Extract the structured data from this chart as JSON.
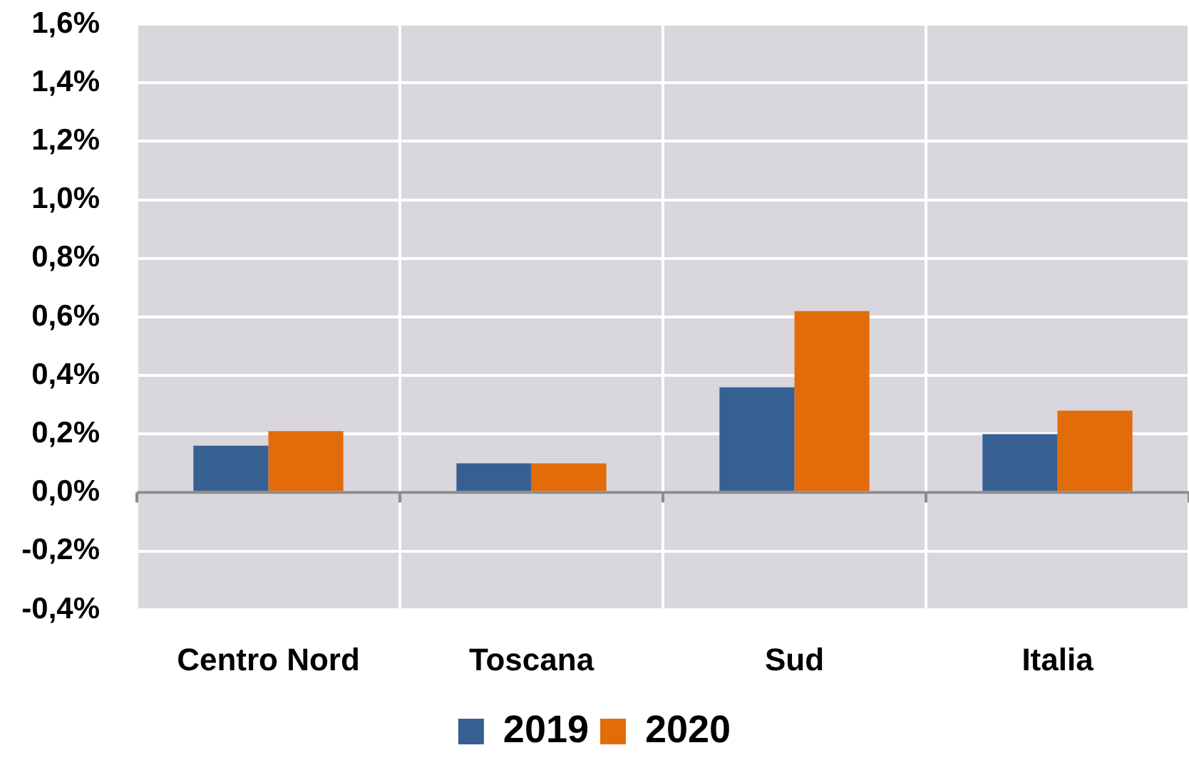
{
  "chart_data": {
    "type": "bar",
    "categories": [
      "Centro Nord",
      "Toscana",
      "Sud",
      "Italia"
    ],
    "series": [
      {
        "name": "2019",
        "color": "#366092",
        "values": [
          0.16,
          0.1,
          0.36,
          0.2
        ]
      },
      {
        "name": "2020",
        "color": "#e36c0a",
        "values": [
          0.21,
          0.1,
          0.62,
          0.28
        ]
      }
    ],
    "ylim": [
      -0.4,
      1.6
    ],
    "yticks": [
      {
        "value": -0.4,
        "label": "-0,4%"
      },
      {
        "value": -0.2,
        "label": "-0,2%"
      },
      {
        "value": 0,
        "label": "0,0%"
      },
      {
        "value": 0.2,
        "label": "0,2%"
      },
      {
        "value": 0.4,
        "label": "0,4%"
      },
      {
        "value": 0.6,
        "label": "0,6%"
      },
      {
        "value": 0.8,
        "label": "0,8%"
      },
      {
        "value": 1,
        "label": "1,0%"
      },
      {
        "value": 1.2,
        "label": "1,2%"
      },
      {
        "value": 1.4,
        "label": "1,4%"
      },
      {
        "value": 1.6,
        "label": "1,6%"
      }
    ],
    "grid": true,
    "legend": "bottom"
  }
}
